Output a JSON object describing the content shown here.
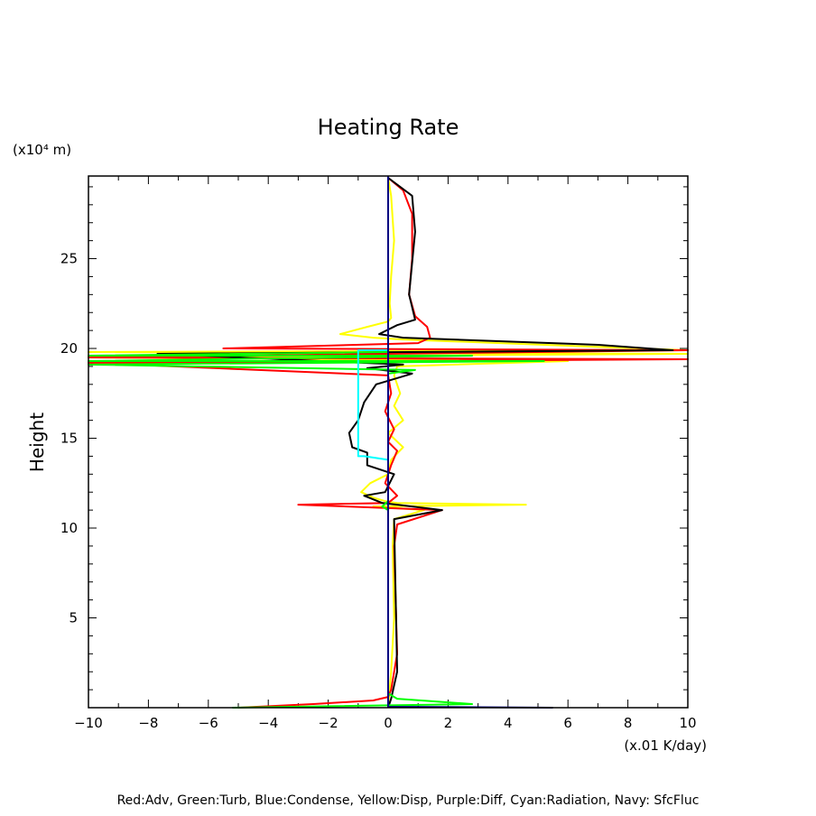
{
  "chart_data": {
    "type": "line",
    "title": "Heating Rate",
    "ylabel": "Height",
    "y_unit": "(x10⁴ m)",
    "x_unit": "(x.01 K/day)",
    "xlim": [
      -10,
      10
    ],
    "ylim": [
      0,
      29.6
    ],
    "x_ticks": [
      -10,
      -8,
      -6,
      -4,
      -2,
      0,
      2,
      4,
      6,
      8,
      10
    ],
    "y_ticks": [
      5,
      10,
      15,
      20,
      25
    ],
    "legend_text": "Red:Adv, Green:Turb, Blue:Condense, Yellow:Disp, Purple:Diff, Cyan:Radiation, Navy: SfcFluc",
    "series": [
      {
        "color": "#ffff00",
        "x": [
          0.0,
          0.1,
          0.2,
          0.1,
          0.05,
          0.1,
          0.0,
          -0.7,
          -1.6,
          -0.5,
          0.5,
          10.0,
          -10.0,
          10.0,
          -10.0,
          6.0,
          0.3,
          0.2,
          0.4,
          0.2,
          0.5,
          0.0,
          0.5,
          0.1,
          0.0,
          -0.6,
          -0.9,
          -0.5,
          -0.1,
          0.3,
          4.6,
          -0.5,
          1.2,
          0.2,
          0.15,
          0.2,
          0.1,
          0.0
        ],
        "y": [
          29.5,
          28.5,
          26.0,
          24.0,
          22.5,
          21.7,
          21.5,
          21.2,
          20.8,
          20.6,
          20.5,
          19.9,
          19.8,
          19.7,
          19.5,
          19.3,
          19.0,
          18.5,
          17.5,
          16.8,
          16.0,
          15.3,
          14.5,
          13.8,
          13.0,
          12.5,
          12.0,
          11.7,
          11.5,
          11.4,
          11.3,
          11.2,
          11.0,
          10.5,
          9.0,
          5.0,
          2.0,
          0.0
        ]
      },
      {
        "color": "#ff0000",
        "x": [
          0.0,
          0.5,
          0.8,
          0.8,
          0.7,
          0.9,
          1.3,
          1.4,
          1.0,
          -5.5,
          10.0,
          -10.0,
          10.0,
          -10.0,
          0.0,
          0.1,
          -0.1,
          0.2,
          0.0,
          0.3,
          0.1,
          -0.1,
          0.3,
          0.0,
          -3.0,
          1.8,
          0.3,
          0.2,
          0.3,
          0.1,
          0.0,
          -0.5,
          -2.5,
          -5.0
        ],
        "y": [
          29.5,
          28.8,
          27.5,
          25.0,
          23.0,
          21.8,
          21.2,
          20.6,
          20.3,
          20.0,
          19.9,
          19.5,
          19.4,
          19.2,
          18.5,
          17.5,
          16.5,
          15.5,
          14.8,
          14.3,
          13.5,
          12.5,
          11.8,
          11.4,
          11.3,
          11.0,
          10.2,
          9.0,
          3.0,
          1.0,
          0.6,
          0.4,
          0.2,
          0.0
        ]
      },
      {
        "color": "#000000",
        "x": [
          0.0,
          0.8,
          0.9,
          0.7,
          0.9,
          0.3,
          -0.3,
          0.5,
          7.0,
          9.5,
          -7.7,
          0.5,
          -0.7,
          0.8,
          -0.4,
          -0.8,
          -1.0,
          -1.3,
          -1.2,
          -0.7,
          -0.7,
          0.2,
          -0.1,
          -0.8,
          -0.2,
          0.3,
          1.8,
          0.2,
          0.3,
          0.1,
          0.0
        ],
        "y": [
          29.5,
          28.5,
          26.5,
          23.0,
          21.6,
          21.3,
          20.8,
          20.6,
          20.2,
          19.9,
          19.7,
          19.1,
          18.9,
          18.6,
          18.0,
          17.0,
          16.0,
          15.3,
          14.5,
          14.2,
          13.5,
          13.0,
          12.0,
          11.8,
          11.4,
          11.3,
          11.0,
          10.5,
          2.0,
          0.5,
          0.0
        ]
      },
      {
        "color": "#00ff00",
        "x": [
          0.0,
          0.0,
          -10.0,
          2.8,
          -10.0,
          5.2,
          -10.0,
          0.9,
          0.0,
          0.0,
          -0.2,
          0.0,
          0.0,
          0.3,
          2.8,
          -5.2
        ],
        "y": [
          20.0,
          19.8,
          19.6,
          19.6,
          19.3,
          19.3,
          19.1,
          18.8,
          18.6,
          11.5,
          11.2,
          11.0,
          0.8,
          0.5,
          0.2,
          0.0
        ]
      },
      {
        "color": "#00ffff",
        "x": [
          0.0,
          -1.0,
          -1.0,
          -1.0,
          -0.8,
          0.0,
          0.0
        ],
        "y": [
          19.9,
          19.9,
          17.0,
          14.0,
          14.0,
          13.8,
          0.0
        ]
      },
      {
        "color": "#0000ff",
        "x": [
          0.0,
          0.0
        ],
        "y": [
          29.6,
          0.0
        ]
      },
      {
        "color": "#000080",
        "x": [
          0.0,
          0.0,
          0.0,
          5.5
        ],
        "y": [
          29.6,
          0.5,
          0.05,
          0.0
        ]
      }
    ]
  }
}
